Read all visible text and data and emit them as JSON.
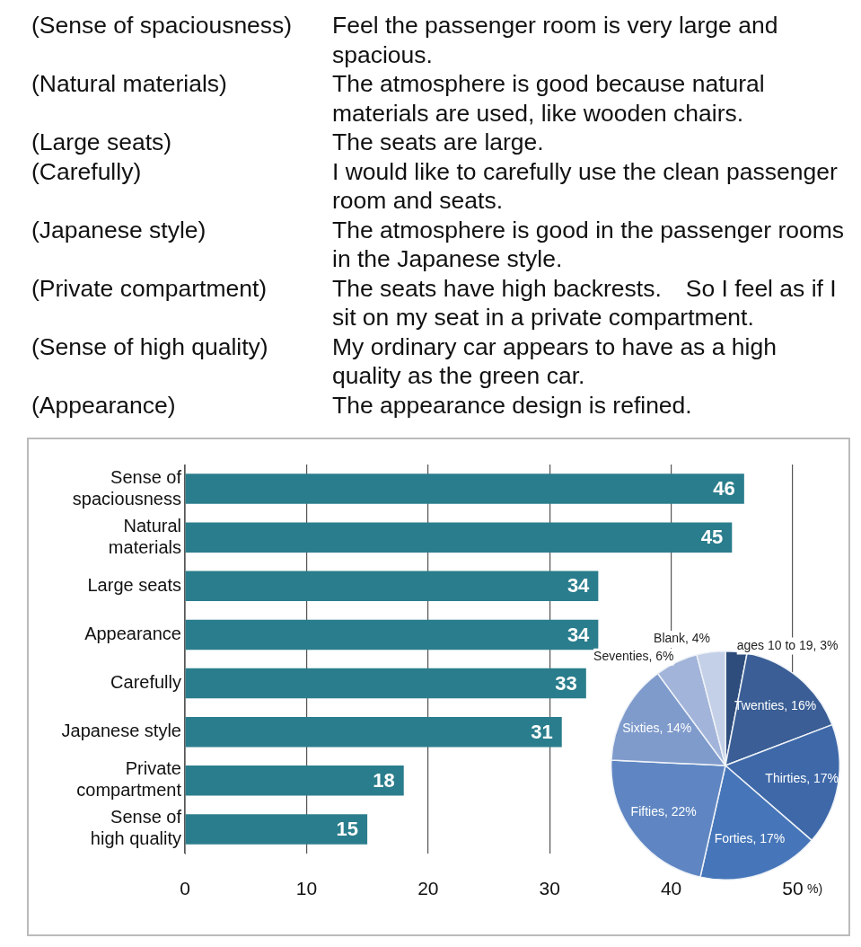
{
  "chart_data": [
    {
      "type": "other",
      "categories": [
        "(Sense of spaciousness)",
        "(Natural materials)",
        "(Large seats)",
        "(Carefully)",
        "(Japanese style)",
        "(Private compartment)",
        "(Sense of high quality)",
        "(Appearance)"
      ],
      "annotations": [
        "Feel the passenger room is very large and spacious.",
        "The atmosphere is good because natural materials are used, like wooden chairs.",
        "The seats are large.",
        "I would like to carefully use the clean passenger room and seats.",
        "The atmosphere is good in the passenger rooms in the Japanese style.",
        "The seats have high backrests.　So I feel as if I sit on my seat in a private compartment.",
        "My ordinary car appears to have as a high quality as the green car.",
        "The appearance design is refined."
      ]
    },
    {
      "type": "bar",
      "orientation": "horizontal",
      "xlabel": "%)",
      "categories": [
        "Sense of spaciousness",
        "Natural materials",
        "Large seats",
        "Appearance",
        "Carefully",
        "Japanese style",
        "Private compartment",
        "Sense of high quality"
      ],
      "values": [
        46,
        45,
        34,
        34,
        33,
        31,
        18,
        15
      ],
      "color": "#2a7d8c",
      "data_labels": true,
      "xlim": [
        0,
        50
      ],
      "xticks": [
        0,
        10,
        20,
        30,
        40,
        50
      ],
      "grid": "x"
    },
    {
      "type": "pie",
      "categories": [
        "ages 10 to 19",
        "Twenties",
        "Thirties",
        "Forties",
        "Fifties",
        "Sixties",
        "Seventies",
        "Blank"
      ],
      "values": [
        3,
        16,
        17,
        17,
        22,
        14,
        6,
        4
      ],
      "value_labels": [
        "3%",
        "16%",
        "17%",
        "17%",
        "22%",
        "14%",
        "6%",
        "4%"
      ],
      "colors": [
        "#2e4d7c",
        "#3a5e95",
        "#3e68a8",
        "#4676b9",
        "#5f86c2",
        "#7f9bcc",
        "#a2b4d9",
        "#c4d0e7"
      ]
    }
  ]
}
